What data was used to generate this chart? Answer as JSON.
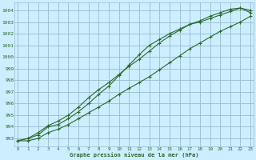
{
  "title": "Graphe pression niveau de la mer (hPa)",
  "bg_color": "#cceeff",
  "grid_color": "#99bbcc",
  "line_color": "#2d6a2d",
  "x_ticks": [
    0,
    1,
    2,
    3,
    4,
    5,
    6,
    7,
    8,
    9,
    10,
    11,
    12,
    13,
    14,
    15,
    16,
    17,
    18,
    19,
    20,
    21,
    22,
    23
  ],
  "y_ticks": [
    993,
    994,
    995,
    996,
    997,
    998,
    999,
    1000,
    1001,
    1002,
    1003,
    1004
  ],
  "ylim": [
    992.3,
    1004.7
  ],
  "xlim": [
    -0.3,
    23.3
  ],
  "line1_y": [
    992.8,
    992.8,
    993.0,
    993.5,
    993.8,
    994.2,
    994.7,
    995.2,
    995.7,
    996.2,
    996.8,
    997.3,
    997.8,
    998.3,
    998.9,
    999.5,
    1000.1,
    1000.7,
    1001.2,
    1001.7,
    1002.2,
    1002.6,
    1003.0,
    1003.5
  ],
  "line2_y": [
    992.8,
    993.0,
    993.5,
    994.1,
    994.5,
    995.0,
    995.7,
    996.5,
    997.2,
    997.8,
    998.5,
    999.2,
    999.8,
    1000.5,
    1001.2,
    1001.8,
    1002.3,
    1002.8,
    1003.1,
    1003.5,
    1003.8,
    1004.1,
    1004.2,
    1004.0
  ],
  "line3_y": [
    992.8,
    993.0,
    993.3,
    994.0,
    994.2,
    994.7,
    995.3,
    996.0,
    996.8,
    997.5,
    998.4,
    999.3,
    1000.2,
    1001.0,
    1001.5,
    1002.0,
    1002.4,
    1002.8,
    1003.0,
    1003.3,
    1003.6,
    1003.9,
    1004.2,
    1003.8
  ]
}
